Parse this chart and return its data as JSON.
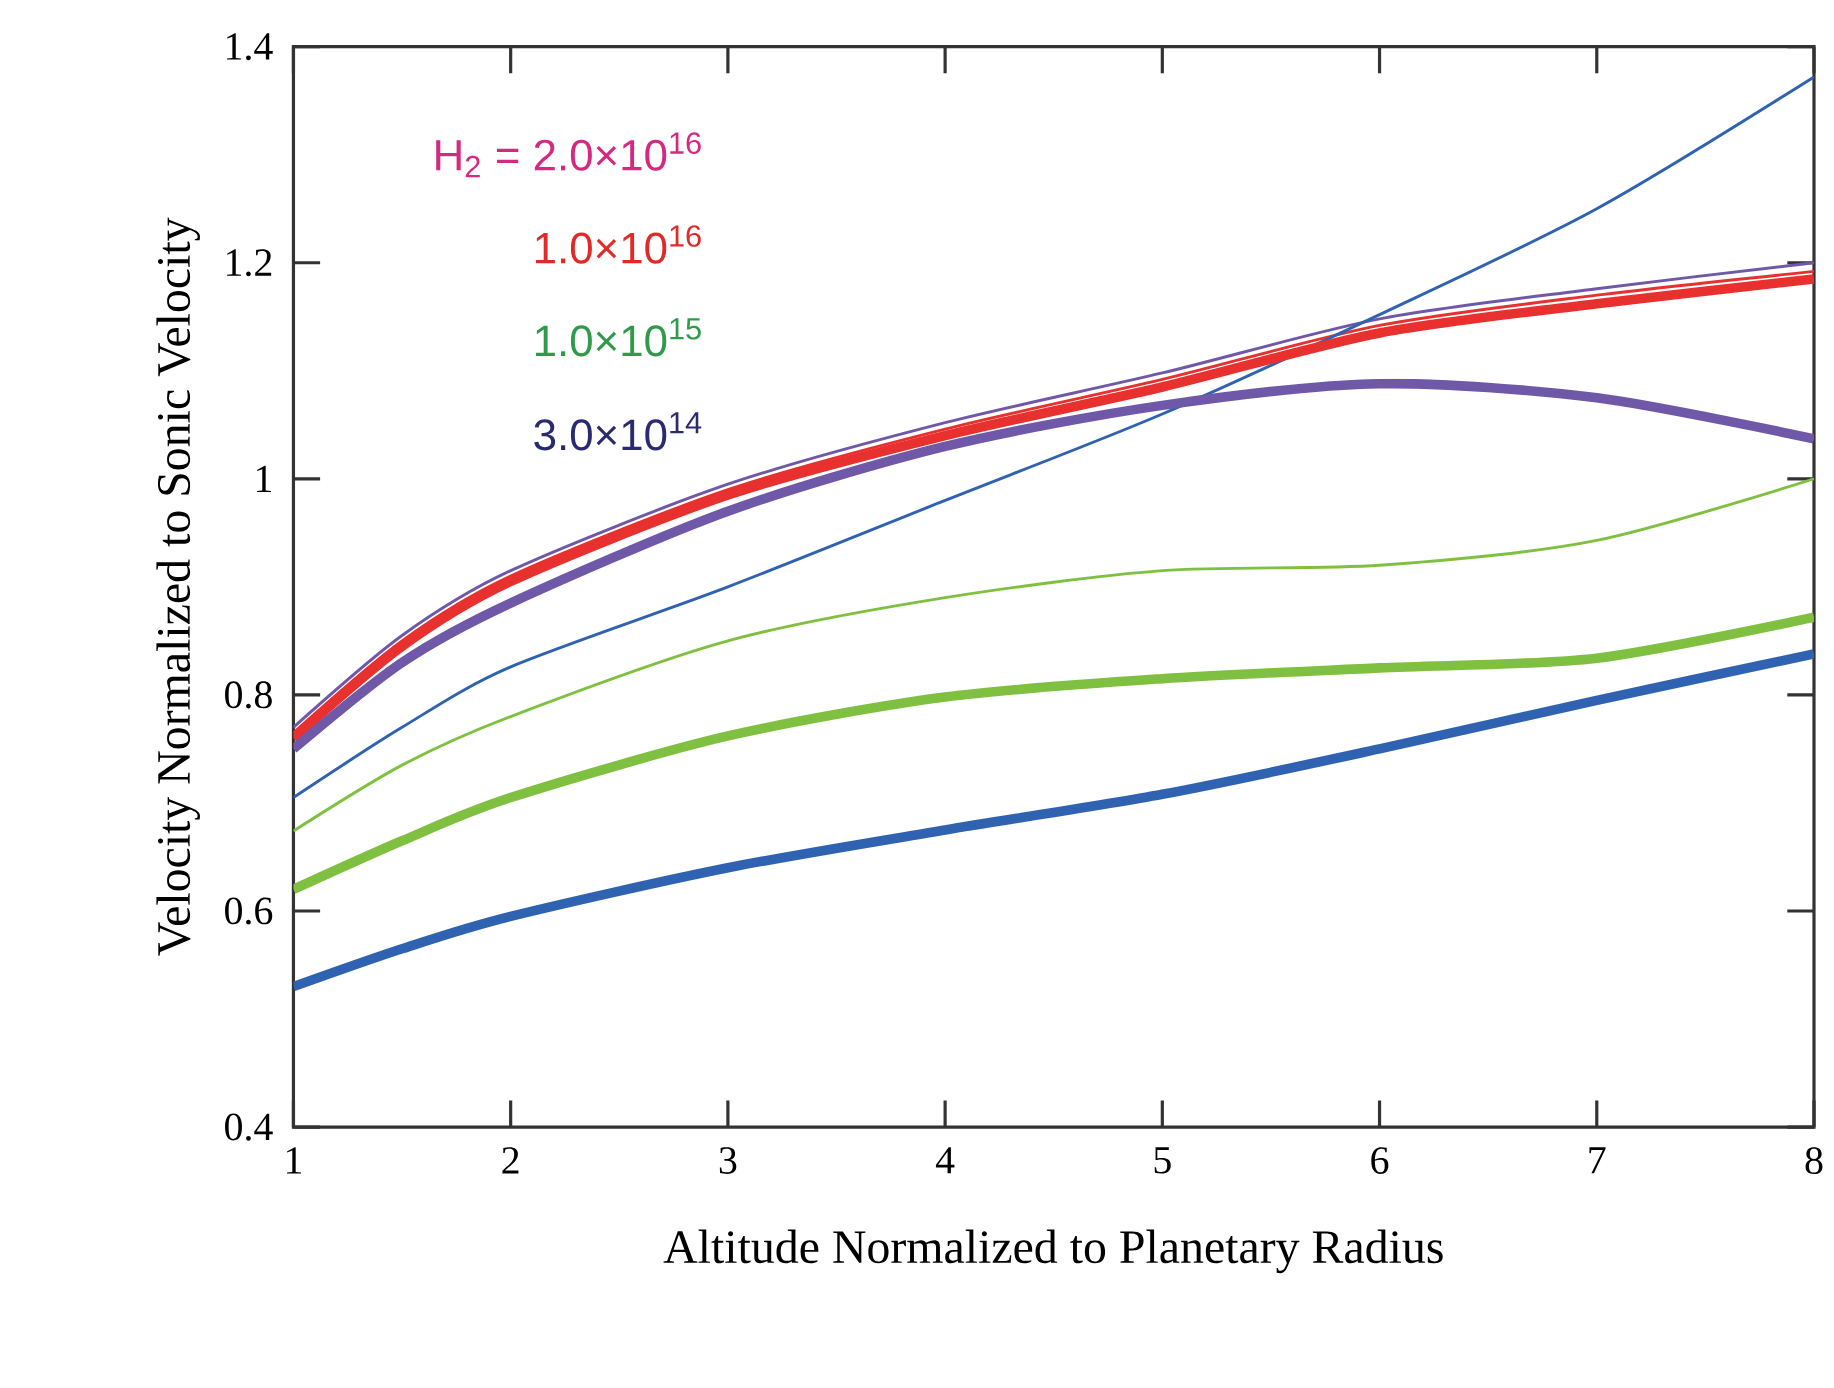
{
  "chart_data": {
    "type": "line",
    "xlabel": "Altitude Normalized to Planetary Radius",
    "ylabel": "Velocity Normalized to Sonic Velocity",
    "xlim": [
      1,
      8
    ],
    "ylim": [
      0.4,
      1.4
    ],
    "xticks": [
      1,
      2,
      3,
      4,
      5,
      6,
      7,
      8
    ],
    "yticks": [
      0.4,
      0.6,
      0.8,
      1,
      1.2,
      1.4
    ],
    "x": [
      1,
      1.5,
      2,
      3,
      4,
      5,
      6,
      7,
      8
    ],
    "grid": false,
    "marker": "none",
    "line_style": "solid",
    "annotations": [
      "H$_{2}$ = 2.0×10$^{16}$",
      "1.0×10$^{16}$",
      "1.0×10$^{15}$",
      "3.0×10$^{14}$"
    ],
    "series": [
      {
        "color": "#7058a8",
        "values": [
          0.77,
          0.855,
          0.915,
          0.995,
          1.052,
          1.098,
          1.148,
          1.176,
          1.2
        ]
      },
      {
        "color": "#e8302e",
        "values": [
          0.765,
          0.85,
          0.91,
          0.99,
          1.046,
          1.092,
          1.142,
          1.17,
          1.192
        ]
      },
      {
        "color": "#2f62b0",
        "values": [
          0.705,
          0.77,
          0.826,
          0.9,
          0.98,
          1.06,
          1.152,
          1.25,
          1.372
        ]
      },
      {
        "color": "#80c040",
        "values": [
          0.674,
          0.735,
          0.78,
          0.85,
          0.89,
          0.915,
          0.92,
          0.943,
          1.0
        ]
      },
      {
        "color": "#e8302e",
        "values": [
          0.76,
          0.845,
          0.905,
          0.985,
          1.04,
          1.085,
          1.135,
          1.162,
          1.185
        ]
      },
      {
        "color": "#7058a8",
        "values": [
          0.75,
          0.83,
          0.885,
          0.97,
          1.03,
          1.068,
          1.088,
          1.075,
          1.037
        ]
      },
      {
        "color": "#80c040",
        "values": [
          0.62,
          0.665,
          0.705,
          0.762,
          0.798,
          0.815,
          0.825,
          0.834,
          0.872
        ]
      },
      {
        "color": "#2f62b0",
        "values": [
          0.53,
          0.565,
          0.595,
          0.64,
          0.675,
          0.708,
          0.75,
          0.795,
          0.838
        ]
      }
    ]
  }
}
